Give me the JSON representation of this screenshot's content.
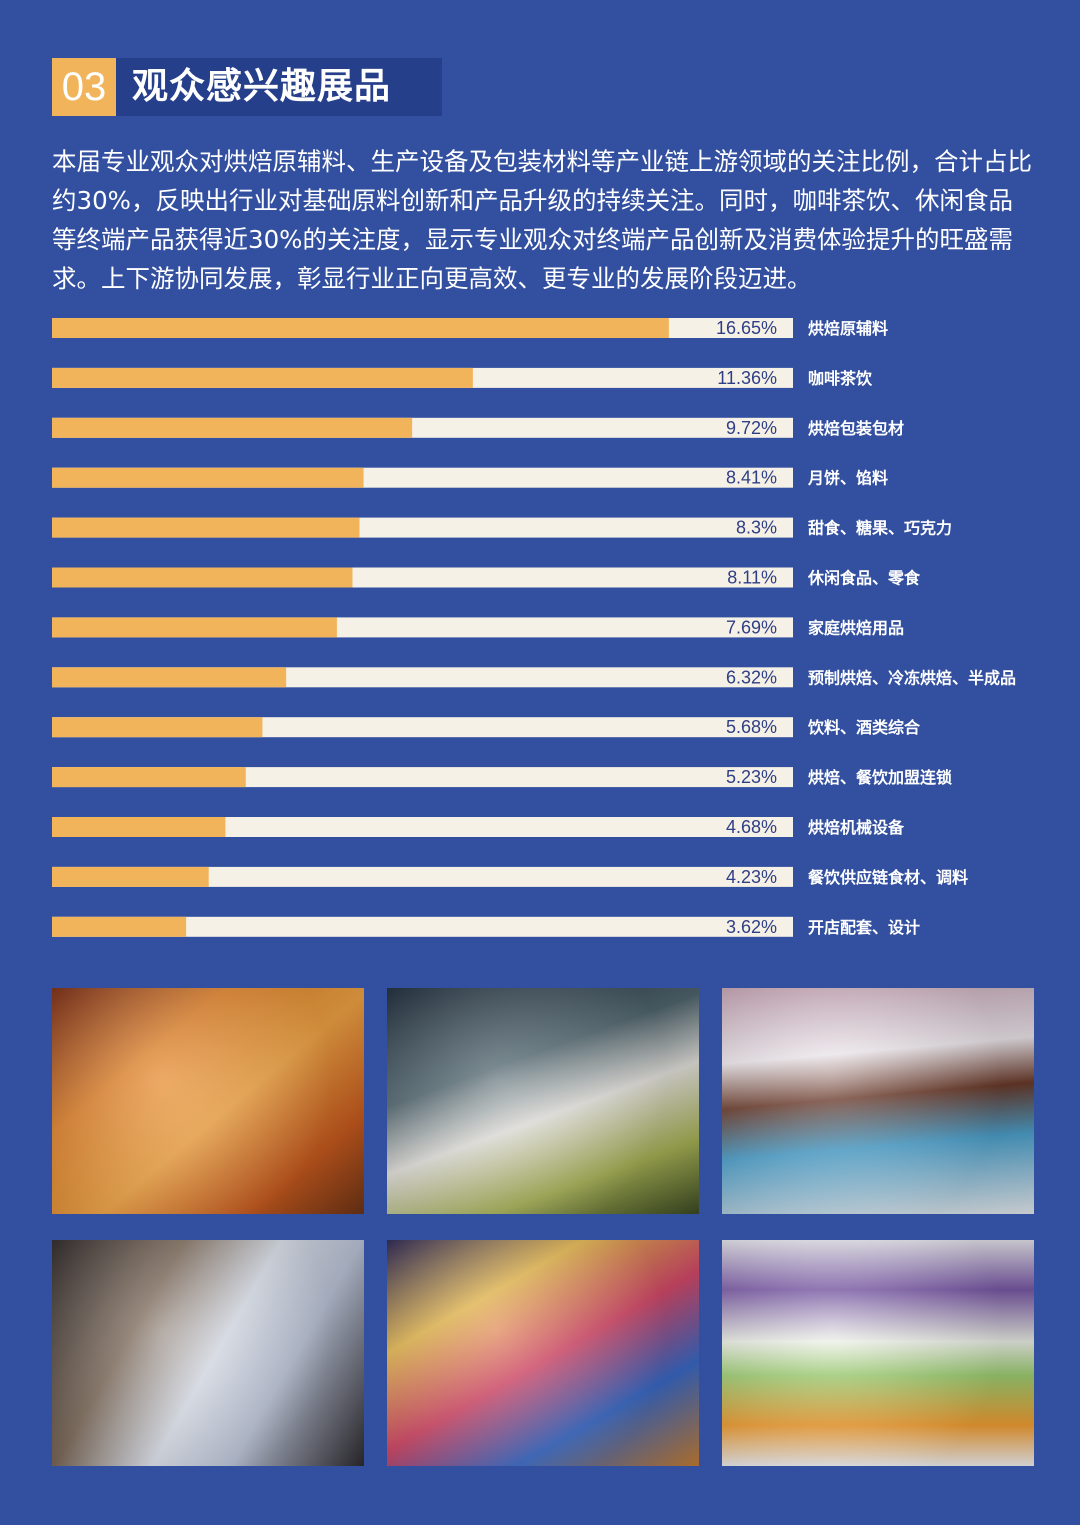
{
  "header": {
    "number": "03",
    "title": "观众感兴趣展品"
  },
  "intro": "本届专业观众对烘焙原辅料、生产设备及包装材料等产业链上游领域的关注比例，合计占比约30%，反映出行业对基础原料创新和产品升级的持续关注。同时，咖啡茶饮、休闲食品等终端产品获得近30%的关注度，显示专业观众对终端产品创新及消费体验提升的旺盛需求。上下游协同发展，彰显行业正向更高效、更专业的发展阶段迈进。",
  "colors": {
    "background": "#3350a0",
    "bar_fill": "#f2b45a",
    "bar_track": "#f6f1e6",
    "label": "#ffffff",
    "value_text": "#2e3f86"
  },
  "chart_data": {
    "type": "bar",
    "orientation": "horizontal",
    "categories": [
      "烘焙原辅料",
      "咖啡茶饮",
      "烘焙包装包材",
      "月饼、馅料",
      "甜食、糖果、巧克力",
      "休闲食品、零食",
      "家庭烘焙用品",
      "预制烘焙、冷冻烘焙、半成品",
      "饮料、酒类综合",
      "烘焙、餐饮加盟连锁",
      "烘焙机械设备",
      "餐饮供应链食材、调料",
      "开店配套、设计"
    ],
    "values": [
      16.65,
      11.36,
      9.72,
      8.41,
      8.3,
      8.11,
      7.69,
      6.32,
      5.68,
      5.23,
      4.68,
      4.23,
      3.62
    ],
    "value_labels": [
      "16.65%",
      "11.36%",
      "9.72%",
      "8.41%",
      "8.3%",
      "8.11%",
      "7.69%",
      "6.32%",
      "5.68%",
      "5.23%",
      "4.68%",
      "4.23%",
      "3.62%"
    ],
    "xlim": [
      0,
      20
    ]
  },
  "photos": [
    {
      "name": "bread-photo"
    },
    {
      "name": "sugar-dress-photo"
    },
    {
      "name": "globe-cake-photo"
    },
    {
      "name": "coffee-bags-photo"
    },
    {
      "name": "cookie-tins-photo"
    },
    {
      "name": "snack-shelf-photo"
    }
  ]
}
